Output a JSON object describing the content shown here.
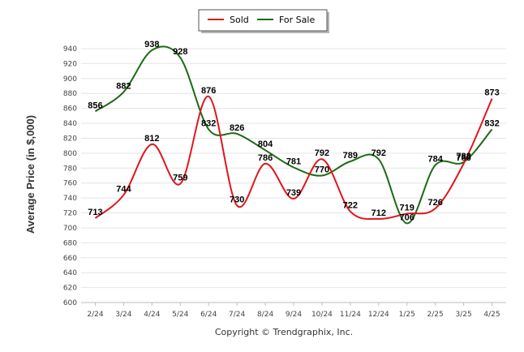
{
  "chart_data": {
    "type": "line",
    "ylabel": "Average Price (in $,000)",
    "categories": [
      "2/24",
      "3/24",
      "4/24",
      "5/24",
      "6/24",
      "7/24",
      "8/24",
      "9/24",
      "10/24",
      "11/24",
      "12/24",
      "1/25",
      "2/25",
      "3/25",
      "4/25"
    ],
    "ylim": [
      600,
      940
    ],
    "yticks": [
      600,
      620,
      640,
      660,
      680,
      700,
      720,
      740,
      760,
      780,
      800,
      820,
      840,
      860,
      880,
      900,
      920,
      940
    ],
    "grid": true,
    "legend_position": "top-center",
    "series": [
      {
        "name": "Sold",
        "color": "#e0161c",
        "values": [
          713,
          744,
          812,
          759,
          876,
          730,
          786,
          739,
          792,
          722,
          712,
          719,
          726,
          786,
          873
        ]
      },
      {
        "name": "For Sale",
        "color": "#1b6b14",
        "values": [
          856,
          882,
          938,
          928,
          832,
          826,
          804,
          781,
          770,
          789,
          792,
          706,
          784,
          788,
          832
        ]
      }
    ]
  },
  "footer": {
    "copyright": "Copyright © Trendgraphix, Inc."
  }
}
